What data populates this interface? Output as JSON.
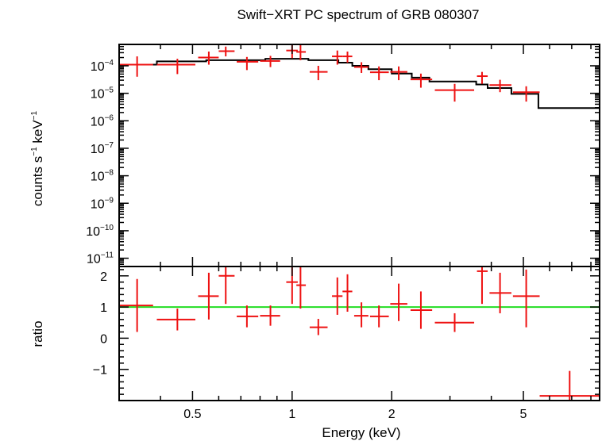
{
  "chart_data": {
    "type": "scatter",
    "title": "Swift−XRT PC spectrum of GRB 080307",
    "xlabel": "Energy (keV)",
    "xscale": "log",
    "xlim": [
      0.3,
      8.5
    ],
    "x_tick_labels": [
      {
        "value": 0.5,
        "label": "0.5"
      },
      {
        "value": 1,
        "label": "1"
      },
      {
        "value": 2,
        "label": "2"
      },
      {
        "value": 5,
        "label": "5"
      }
    ],
    "top_panel": {
      "ylabel_main": "counts s",
      "ylabel_exp1": "−1",
      "ylabel_mid": " keV",
      "ylabel_exp2": "−1",
      "yscale": "log",
      "ylim": [
        5e-12,
        0.0006
      ],
      "y_tick_labels": [
        {
          "value": 0.0001,
          "base": "10",
          "exp": "−4"
        },
        {
          "value": 1e-05,
          "base": "10",
          "exp": "−5"
        },
        {
          "value": 1e-06,
          "base": "10",
          "exp": "−6"
        },
        {
          "value": 1e-07,
          "base": "10",
          "exp": "−7"
        },
        {
          "value": 1e-08,
          "base": "10",
          "exp": "−8"
        },
        {
          "value": 1e-09,
          "base": "10",
          "exp": "−9"
        },
        {
          "value": 1e-10,
          "base": "10",
          "exp": "−10"
        },
        {
          "value": 1e-11,
          "base": "10",
          "exp": "−11"
        }
      ],
      "data": [
        {
          "x": 0.34,
          "xlo": 0.3,
          "xhi": 0.38,
          "y": 0.00011,
          "ylo": 4e-05,
          "yhi": 0.00022
        },
        {
          "x": 0.45,
          "xlo": 0.39,
          "xhi": 0.51,
          "y": 0.00011,
          "ylo": 5e-05,
          "yhi": 0.00018
        },
        {
          "x": 0.56,
          "xlo": 0.52,
          "xhi": 0.6,
          "y": 0.0002,
          "ylo": 0.00011,
          "yhi": 0.00033
        },
        {
          "x": 0.63,
          "xlo": 0.6,
          "xhi": 0.67,
          "y": 0.00034,
          "ylo": 0.00022,
          "yhi": 0.0005
        },
        {
          "x": 0.73,
          "xlo": 0.68,
          "xhi": 0.79,
          "y": 0.00014,
          "ylo": 7e-05,
          "yhi": 0.00021
        },
        {
          "x": 0.86,
          "xlo": 0.8,
          "xhi": 0.92,
          "y": 0.00015,
          "ylo": 9e-05,
          "yhi": 0.00023
        },
        {
          "x": 1.0,
          "xlo": 0.96,
          "xhi": 1.04,
          "y": 0.00036,
          "ylo": 0.00019,
          "yhi": 0.0006
        },
        {
          "x": 1.06,
          "xlo": 1.03,
          "xhi": 1.1,
          "y": 0.00032,
          "ylo": 0.00016,
          "yhi": 0.0006
        },
        {
          "x": 1.2,
          "xlo": 1.13,
          "xhi": 1.28,
          "y": 6e-05,
          "ylo": 3e-05,
          "yhi": 0.0001
        },
        {
          "x": 1.37,
          "xlo": 1.32,
          "xhi": 1.42,
          "y": 0.00022,
          "ylo": 0.00011,
          "yhi": 0.00036
        },
        {
          "x": 1.47,
          "xlo": 1.42,
          "xhi": 1.52,
          "y": 0.00022,
          "ylo": 0.00013,
          "yhi": 0.00033
        },
        {
          "x": 1.62,
          "xlo": 1.54,
          "xhi": 1.7,
          "y": 9e-05,
          "ylo": 5.5e-05,
          "yhi": 0.000135
        },
        {
          "x": 1.83,
          "xlo": 1.72,
          "xhi": 1.96,
          "y": 5.8e-05,
          "ylo": 3e-05,
          "yhi": 9.5e-05
        },
        {
          "x": 2.1,
          "xlo": 1.98,
          "xhi": 2.23,
          "y": 6e-05,
          "ylo": 3e-05,
          "yhi": 9.5e-05
        },
        {
          "x": 2.45,
          "xlo": 2.28,
          "xhi": 2.65,
          "y": 3.2e-05,
          "ylo": 1.6e-05,
          "yhi": 5.2e-05
        },
        {
          "x": 3.1,
          "xlo": 2.7,
          "xhi": 3.55,
          "y": 1.3e-05,
          "ylo": 5e-06,
          "yhi": 2.2e-05
        },
        {
          "x": 3.75,
          "xlo": 3.62,
          "xhi": 3.9,
          "y": 4.2e-05,
          "ylo": 2.2e-05,
          "yhi": 6e-05
        },
        {
          "x": 4.25,
          "xlo": 3.95,
          "xhi": 4.6,
          "y": 2e-05,
          "ylo": 1.1e-05,
          "yhi": 3.1e-05
        },
        {
          "x": 5.1,
          "xlo": 4.65,
          "xhi": 5.6,
          "y": 1.1e-05,
          "ylo": 5e-06,
          "yhi": 1.8e-05
        }
      ],
      "model_step": [
        {
          "x0": 0.3,
          "x1": 0.39,
          "y": 0.00011
        },
        {
          "x0": 0.39,
          "x1": 0.55,
          "y": 0.000145
        },
        {
          "x0": 0.55,
          "x1": 0.83,
          "y": 0.00016
        },
        {
          "x0": 0.83,
          "x1": 1.12,
          "y": 0.00018
        },
        {
          "x0": 1.12,
          "x1": 1.38,
          "y": 0.00016
        },
        {
          "x0": 1.38,
          "x1": 1.52,
          "y": 0.00013
        },
        {
          "x0": 1.52,
          "x1": 1.7,
          "y": 0.0001
        },
        {
          "x0": 1.7,
          "x1": 2.0,
          "y": 7.5e-05
        },
        {
          "x0": 2.0,
          "x1": 2.3,
          "y": 5.2e-05
        },
        {
          "x0": 2.3,
          "x1": 2.6,
          "y": 3.7e-05
        },
        {
          "x0": 2.6,
          "x1": 3.6,
          "y": 2.7e-05
        },
        {
          "x0": 3.6,
          "x1": 3.9,
          "y": 2.1e-05
        },
        {
          "x0": 3.9,
          "x1": 4.6,
          "y": 1.55e-05
        },
        {
          "x0": 4.6,
          "x1": 5.55,
          "y": 9.5e-06
        },
        {
          "x0": 5.55,
          "x1": 8.5,
          "y": 2.9e-06
        }
      ]
    },
    "bottom_panel": {
      "ylabel": "ratio",
      "ylim": [
        -2.0,
        2.3
      ],
      "y_tick_labels": [
        {
          "value": 2,
          "label": "2"
        },
        {
          "value": 1,
          "label": "1"
        },
        {
          "value": 0,
          "label": "0"
        },
        {
          "value": -1,
          "label": "−1"
        }
      ],
      "reference_line": 1,
      "data": [
        {
          "x": 0.34,
          "xlo": 0.3,
          "xhi": 0.38,
          "y": 1.05,
          "ylo": 0.2,
          "yhi": 1.9
        },
        {
          "x": 0.45,
          "xlo": 0.39,
          "xhi": 0.51,
          "y": 0.6,
          "ylo": 0.25,
          "yhi": 0.95
        },
        {
          "x": 0.56,
          "xlo": 0.52,
          "xhi": 0.6,
          "y": 1.35,
          "ylo": 0.6,
          "yhi": 2.1
        },
        {
          "x": 0.63,
          "xlo": 0.6,
          "xhi": 0.67,
          "y": 2.0,
          "ylo": 1.1,
          "yhi": 2.3
        },
        {
          "x": 0.73,
          "xlo": 0.68,
          "xhi": 0.79,
          "y": 0.7,
          "ylo": 0.35,
          "yhi": 1.05
        },
        {
          "x": 0.86,
          "xlo": 0.8,
          "xhi": 0.92,
          "y": 0.72,
          "ylo": 0.4,
          "yhi": 1.05
        },
        {
          "x": 1.0,
          "xlo": 0.96,
          "xhi": 1.04,
          "y": 1.8,
          "ylo": 1.1,
          "yhi": 2.3
        },
        {
          "x": 1.06,
          "xlo": 1.03,
          "xhi": 1.1,
          "y": 1.7,
          "ylo": 0.95,
          "yhi": 2.3
        },
        {
          "x": 1.2,
          "xlo": 1.13,
          "xhi": 1.28,
          "y": 0.35,
          "ylo": 0.1,
          "yhi": 0.62
        },
        {
          "x": 1.37,
          "xlo": 1.32,
          "xhi": 1.42,
          "y": 1.35,
          "ylo": 0.75,
          "yhi": 1.95
        },
        {
          "x": 1.47,
          "xlo": 1.42,
          "xhi": 1.52,
          "y": 1.5,
          "ylo": 0.85,
          "yhi": 2.05
        },
        {
          "x": 1.62,
          "xlo": 1.54,
          "xhi": 1.7,
          "y": 0.72,
          "ylo": 0.35,
          "yhi": 1.15
        },
        {
          "x": 1.83,
          "xlo": 1.72,
          "xhi": 1.96,
          "y": 0.7,
          "ylo": 0.35,
          "yhi": 1.05
        },
        {
          "x": 2.1,
          "xlo": 1.98,
          "xhi": 2.23,
          "y": 1.1,
          "ylo": 0.55,
          "yhi": 1.75
        },
        {
          "x": 2.45,
          "xlo": 2.28,
          "xhi": 2.65,
          "y": 0.9,
          "ylo": 0.3,
          "yhi": 1.5
        },
        {
          "x": 3.1,
          "xlo": 2.7,
          "xhi": 3.55,
          "y": 0.5,
          "ylo": 0.2,
          "yhi": 0.8
        },
        {
          "x": 3.75,
          "xlo": 3.62,
          "xhi": 3.9,
          "y": 2.15,
          "ylo": 1.1,
          "yhi": 2.3
        },
        {
          "x": 4.25,
          "xlo": 3.95,
          "xhi": 4.6,
          "y": 1.45,
          "ylo": 0.8,
          "yhi": 2.1
        },
        {
          "x": 5.1,
          "xlo": 4.65,
          "xhi": 5.6,
          "y": 1.35,
          "ylo": 0.35,
          "yhi": 2.2
        },
        {
          "x": 6.9,
          "xlo": 5.6,
          "xhi": 8.5,
          "y": -1.85,
          "ylo": -2.0,
          "yhi": -1.05
        }
      ]
    },
    "colors": {
      "data": "#ee1111",
      "model": "#000000",
      "reference": "#22dd22",
      "axes": "#000000"
    }
  }
}
